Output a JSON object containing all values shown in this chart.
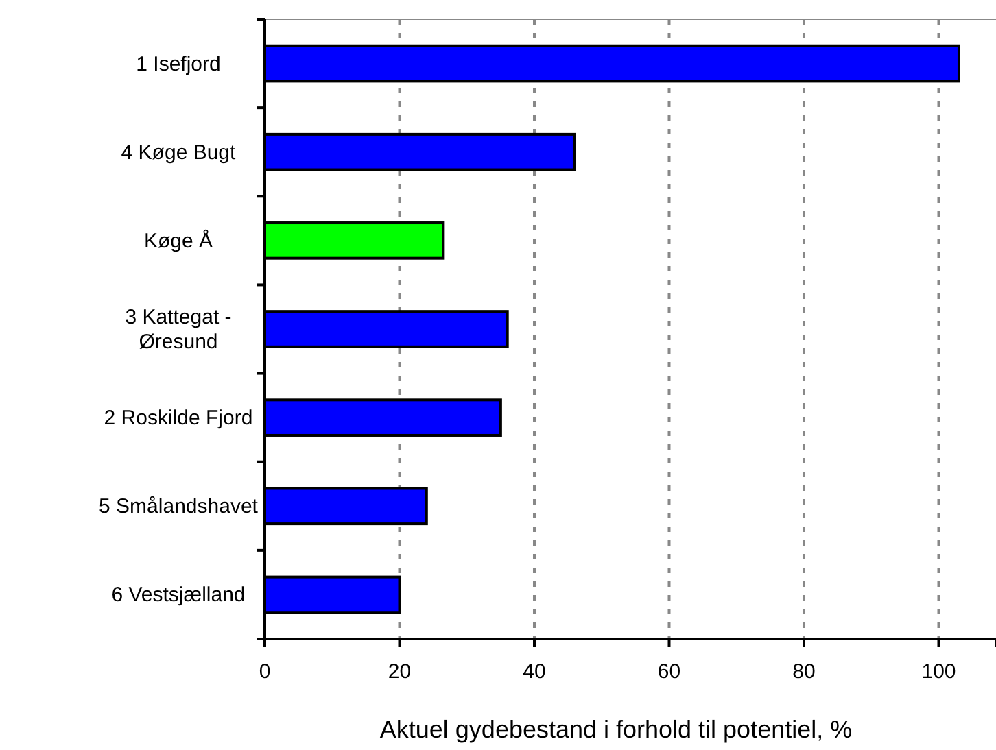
{
  "chart_data": {
    "type": "bar",
    "orientation": "horizontal",
    "xlabel": "Aktuel gydebestand i forhold til potentiel, %",
    "categories": [
      "1 Isefjord",
      "4 Køge Bugt",
      "Køge Å",
      "3 Kattegat - Øresund",
      "2 Roskilde Fjord",
      "5 Smålandshavet",
      "6  Vestsjælland"
    ],
    "values": [
      103,
      46,
      26.5,
      36,
      35,
      24,
      20
    ],
    "colors": [
      "#0000ff",
      "#0000ff",
      "#00ff00",
      "#0000ff",
      "#0000ff",
      "#0000ff",
      "#0000ff"
    ],
    "xlim": [
      0,
      108.5
    ],
    "xticks": [
      0,
      20,
      40,
      60,
      80,
      100
    ],
    "grid": "x"
  }
}
